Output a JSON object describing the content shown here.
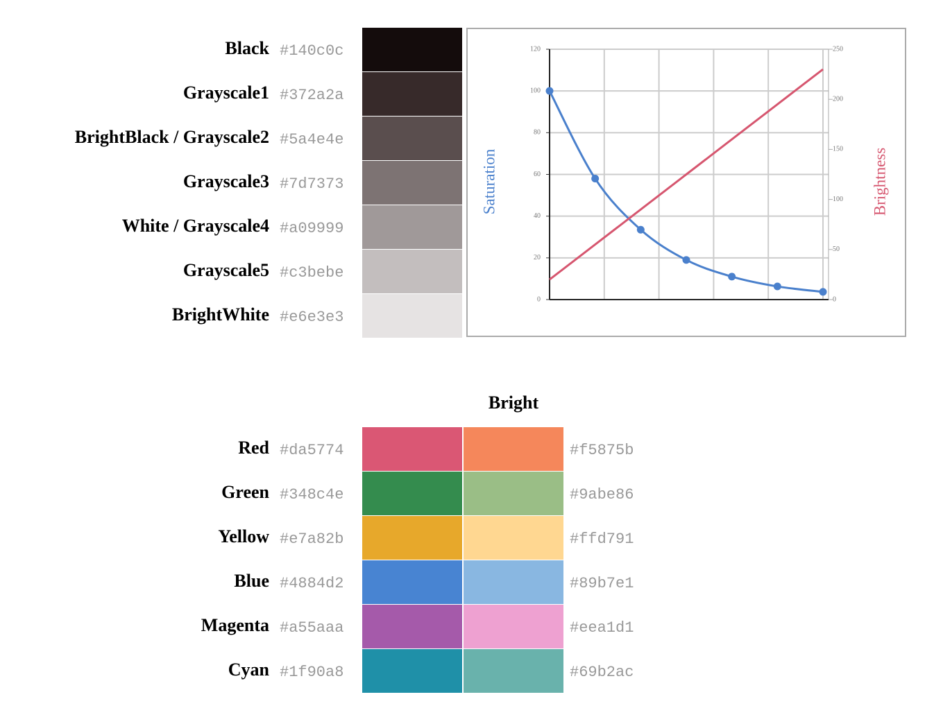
{
  "grayscale": [
    {
      "name": "Black",
      "hex": "#140c0c"
    },
    {
      "name": "Grayscale1",
      "hex": "#372a2a"
    },
    {
      "name": "BrightBlack / Grayscale2",
      "hex": "#5a4e4e"
    },
    {
      "name": "Grayscale3",
      "hex": "#7d7373"
    },
    {
      "name": "White / Grayscale4",
      "hex": "#a09999"
    },
    {
      "name": "Grayscale5",
      "hex": "#c3bebe"
    },
    {
      "name": "BrightWhite",
      "hex": "#e6e3e3"
    }
  ],
  "chart_data": {
    "type": "line",
    "categories": [
      null,
      null,
      null,
      null,
      null,
      null,
      null
    ],
    "series": [
      {
        "name": "Saturation",
        "color": "#4a80cc",
        "values": [
          100,
          58,
          33.5,
          19,
          11,
          6.3,
          3.7
        ],
        "marker": true,
        "smooth": true
      },
      {
        "name": "Brightness",
        "color": "#d6566f",
        "values": [
          20,
          55,
          90,
          125,
          160,
          195,
          230
        ],
        "axis": "y2",
        "marker": false,
        "smooth": false
      }
    ],
    "ylim": [
      0,
      120
    ],
    "yticks": [
      0,
      20,
      40,
      60,
      80,
      100,
      120
    ],
    "y2lim": [
      0,
      250
    ],
    "y2ticks": [
      0,
      50,
      100,
      150,
      200,
      250
    ],
    "grid": true
  },
  "colors": {
    "title": "Bright",
    "rows": [
      {
        "name": "Red",
        "hex": "#da5774",
        "bright_hex": "#f5875b"
      },
      {
        "name": "Green",
        "hex": "#348c4e",
        "bright_hex": "#9abe86"
      },
      {
        "name": "Yellow",
        "hex": "#e7a82b",
        "bright_hex": "#ffd791"
      },
      {
        "name": "Blue",
        "hex": "#4884d2",
        "bright_hex": "#89b7e1"
      },
      {
        "name": "Magenta",
        "hex": "#a55aaa",
        "bright_hex": "#eea1d1"
      },
      {
        "name": "Cyan",
        "hex": "#1f90a8",
        "bright_hex": "#69b2ac"
      }
    ]
  }
}
